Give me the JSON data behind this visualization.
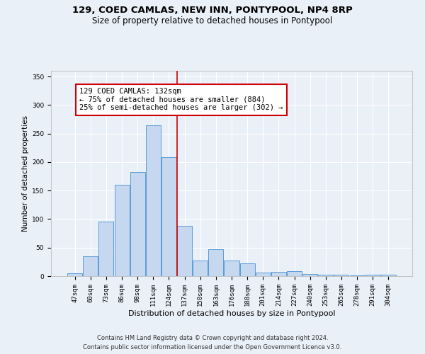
{
  "title": "129, COED CAMLAS, NEW INN, PONTYPOOL, NP4 8RP",
  "subtitle": "Size of property relative to detached houses in Pontypool",
  "xlabel": "Distribution of detached houses by size in Pontypool",
  "ylabel": "Number of detached properties",
  "categories": [
    "47sqm",
    "60sqm",
    "73sqm",
    "86sqm",
    "98sqm",
    "111sqm",
    "124sqm",
    "137sqm",
    "150sqm",
    "163sqm",
    "176sqm",
    "188sqm",
    "201sqm",
    "214sqm",
    "227sqm",
    "240sqm",
    "253sqm",
    "265sqm",
    "278sqm",
    "291sqm",
    "304sqm"
  ],
  "values": [
    5,
    35,
    95,
    160,
    183,
    265,
    208,
    88,
    27,
    47,
    27,
    22,
    6,
    8,
    9,
    4,
    2,
    3,
    1,
    3,
    3
  ],
  "bar_color": "#c5d8f0",
  "bar_edge_color": "#5b9bd5",
  "vline_x_index": 6.5,
  "vline_color": "#cc0000",
  "annotation_text": "129 COED CAMLAS: 132sqm\n← 75% of detached houses are smaller (884)\n25% of semi-detached houses are larger (302) →",
  "annotation_box_facecolor": "#ffffff",
  "annotation_box_edgecolor": "#cc0000",
  "ylim": [
    0,
    360
  ],
  "yticks": [
    0,
    50,
    100,
    150,
    200,
    250,
    300,
    350
  ],
  "background_color": "#eaf0f8",
  "plot_bg_color": "#eaf0f8",
  "grid_color": "#ffffff",
  "footer_line1": "Contains HM Land Registry data © Crown copyright and database right 2024.",
  "footer_line2": "Contains public sector information licensed under the Open Government Licence v3.0.",
  "title_fontsize": 9.5,
  "subtitle_fontsize": 8.5,
  "xlabel_fontsize": 8,
  "ylabel_fontsize": 7.5,
  "tick_fontsize": 6.5,
  "annotation_fontsize": 7.5,
  "footer_fontsize": 6
}
